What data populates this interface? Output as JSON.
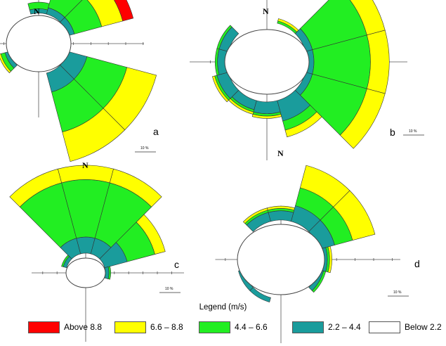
{
  "figure": {
    "legend_title": "Legend (m/s)",
    "legend": [
      {
        "label": "Above 8.8",
        "color": "#ff0000"
      },
      {
        "label": "6.6 – 8.8",
        "color": "#ffff00"
      },
      {
        "label": "4.4 – 6.6",
        "color": "#22ee22"
      },
      {
        "label": "2.2 – 4.4",
        "color": "#1a9c9c"
      },
      {
        "label": "Below 2.2",
        "color": "#ffffff"
      }
    ]
  },
  "chart_data": [
    {
      "type": "wind-rose",
      "panel_label": "a",
      "north_label": "N",
      "scale_label": "10 %",
      "bins": [
        "Below 2.2",
        "2.2 – 4.4",
        "4.4 – 6.6",
        "6.6 – 8.8",
        "Above 8.8"
      ],
      "petals": [
        {
          "direction_deg": 0,
          "cumulative_pct": [
            7.0,
            8.0,
            9.5,
            9.5,
            9.5
          ]
        },
        {
          "direction_deg": 30,
          "cumulative_pct": [
            7.0,
            8.5,
            15.0,
            20.0,
            22.5
          ]
        },
        {
          "direction_deg": 60,
          "cumulative_pct": [
            7.0,
            8.5,
            15.0,
            20.0,
            22.5
          ]
        },
        {
          "direction_deg": 120,
          "cumulative_pct": [
            7.0,
            11.5,
            21.0,
            28.0,
            28.0
          ]
        },
        {
          "direction_deg": 150,
          "cumulative_pct": [
            7.0,
            11.5,
            21.0,
            28.0,
            28.0
          ]
        },
        {
          "direction_deg": 240,
          "cumulative_pct": [
            7.0,
            8.0,
            9.0,
            9.5,
            9.5
          ]
        }
      ]
    },
    {
      "type": "wind-rose",
      "panel_label": "b",
      "north_label": "N",
      "scale_label": "10 %",
      "bins": [
        "Below 2.2",
        "2.2 – 4.4",
        "4.4 – 6.6",
        "6.6 – 8.8",
        "Above 8.8"
      ],
      "petals": [
        {
          "direction_deg": 30,
          "cumulative_pct": [
            8.5,
            8.5,
            9.0,
            9.5,
            9.5
          ]
        },
        {
          "direction_deg": 60,
          "cumulative_pct": [
            8.5,
            10.0,
            22.0,
            26.0,
            26.0
          ]
        },
        {
          "direction_deg": 90,
          "cumulative_pct": [
            8.5,
            10.0,
            22.0,
            26.0,
            26.0
          ]
        },
        {
          "direction_deg": 120,
          "cumulative_pct": [
            8.5,
            10.0,
            22.0,
            26.0,
            26.0
          ]
        },
        {
          "direction_deg": 150,
          "cumulative_pct": [
            8.5,
            13.0,
            15.0,
            16.5,
            16.5
          ]
        },
        {
          "direction_deg": 180,
          "cumulative_pct": [
            8.5,
            11.0,
            11.5,
            12.0,
            12.0
          ]
        },
        {
          "direction_deg": 210,
          "cumulative_pct": [
            8.5,
            10.5,
            11.0,
            11.5,
            11.5
          ]
        },
        {
          "direction_deg": 240,
          "cumulative_pct": [
            8.5,
            11.0,
            11.5,
            12.0,
            12.0
          ]
        },
        {
          "direction_deg": 270,
          "cumulative_pct": [
            8.5,
            10.5,
            11.0,
            11.0,
            11.0
          ]
        },
        {
          "direction_deg": 300,
          "cumulative_pct": [
            8.5,
            10.5,
            11.0,
            11.0,
            11.0
          ]
        }
      ]
    },
    {
      "type": "wind-rose",
      "panel_label": "c",
      "north_label": "N",
      "scale_label": "10 %",
      "bins": [
        "Below 2.2",
        "2.2 – 4.4",
        "4.4 – 6.6",
        "6.6 – 8.8",
        "Above 8.8"
      ],
      "petals": [
        {
          "direction_deg": 330,
          "cumulative_pct": [
            5.5,
            10.0,
            26.0,
            30.0,
            30.0
          ]
        },
        {
          "direction_deg": 0,
          "cumulative_pct": [
            5.5,
            10.0,
            26.0,
            30.0,
            30.0
          ]
        },
        {
          "direction_deg": 30,
          "cumulative_pct": [
            5.5,
            10.0,
            26.0,
            30.0,
            30.0
          ]
        },
        {
          "direction_deg": 60,
          "cumulative_pct": [
            5.5,
            12.0,
            20.0,
            23.0,
            23.0
          ]
        },
        {
          "direction_deg": 90,
          "cumulative_pct": [
            5.5,
            6.5,
            7.0,
            7.0,
            7.0
          ]
        },
        {
          "direction_deg": 300,
          "cumulative_pct": [
            5.5,
            6.5,
            7.0,
            7.0,
            7.0
          ]
        }
      ]
    },
    {
      "type": "wind-rose",
      "panel_label": "d",
      "north_label": "N",
      "scale_label": "10 %",
      "bins": [
        "Below 2.2",
        "2.2 – 4.4",
        "4.4 – 6.6",
        "6.6 – 8.8",
        "Above 8.8"
      ],
      "petals": [
        {
          "direction_deg": 330,
          "cumulative_pct": [
            8.5,
            10.5,
            11.0,
            11.5,
            11.5
          ]
        },
        {
          "direction_deg": 0,
          "cumulative_pct": [
            8.5,
            10.5,
            11.0,
            11.5,
            11.5
          ]
        },
        {
          "direction_deg": 30,
          "cumulative_pct": [
            8.5,
            12.0,
            16.0,
            21.0,
            21.0
          ]
        },
        {
          "direction_deg": 60,
          "cumulative_pct": [
            8.5,
            12.0,
            16.0,
            21.0,
            21.0
          ]
        },
        {
          "direction_deg": 90,
          "cumulative_pct": [
            8.5,
            10.0,
            10.5,
            11.0,
            11.0
          ]
        },
        {
          "direction_deg": 120,
          "cumulative_pct": [
            8.5,
            9.5,
            10.0,
            10.0,
            10.0
          ]
        },
        {
          "direction_deg": 210,
          "cumulative_pct": [
            8.5,
            9.5,
            9.5,
            9.5,
            9.5
          ]
        },
        {
          "direction_deg": 240,
          "cumulative_pct": [
            8.5,
            9.5,
            9.5,
            9.5,
            9.5
          ]
        }
      ]
    }
  ]
}
